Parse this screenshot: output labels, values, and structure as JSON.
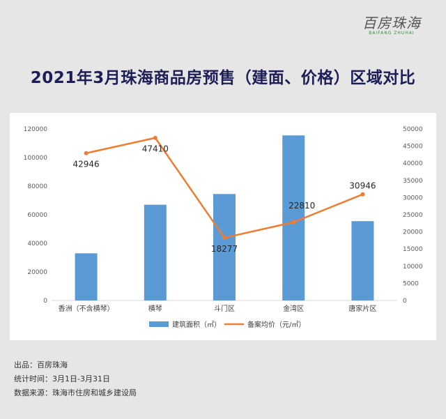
{
  "brand": {
    "logo_text": "百房珠海",
    "logo_subtext": "BAIFANG ZHUHAI"
  },
  "page_title": "2021年3月珠海商品房预售（建面、价格）区域对比",
  "footer": {
    "producer": "出品：百房珠海",
    "period": "统计时间：3月1日-3月31日",
    "source": "数据来源：珠海市住房和城乡建设局"
  },
  "colors": {
    "bar": "#5b9bd5",
    "line": "#ed7d31",
    "title": "#1d1d57"
  },
  "chart_data": {
    "type": "bar",
    "categories": [
      "香洲（不含横琴）",
      "横琴",
      "斗门区",
      "金湾区",
      "唐家片区"
    ],
    "series": [
      {
        "name": "建筑面积（㎡）",
        "type": "bar",
        "axis": "left",
        "values": [
          33000,
          67000,
          74500,
          115500,
          55500
        ]
      },
      {
        "name": "备案均价（元/㎡）",
        "type": "line",
        "axis": "right",
        "values": [
          42946,
          47410,
          18277,
          22810,
          30946
        ],
        "data_labels": [
          "42946",
          "47410",
          "18277",
          "22810",
          "30946"
        ]
      }
    ],
    "y_left": {
      "min": 0,
      "max": 120000,
      "ticks": [
        "0",
        "20000",
        "40000",
        "60000",
        "80000",
        "100000",
        "120000"
      ]
    },
    "y_right": {
      "min": 0,
      "max": 50000,
      "ticks": [
        "0",
        "5000",
        "10000",
        "15000",
        "20000",
        "25000",
        "30000",
        "35000",
        "40000",
        "45000",
        "50000"
      ]
    },
    "grid": false,
    "legend": "bottom"
  }
}
